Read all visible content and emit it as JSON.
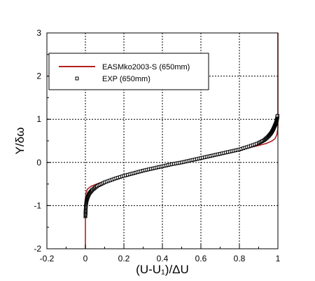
{
  "chart_data": {
    "type": "line",
    "title": "",
    "xlabel": "(U-U₁)/ΔU",
    "ylabel": "Y/δω",
    "xlim": [
      -0.2,
      1.0
    ],
    "ylim": [
      -2,
      3
    ],
    "x_ticks": [
      "-0.2",
      "0",
      "0.2",
      "0.4",
      "0.6",
      "0.8",
      "1"
    ],
    "y_ticks": [
      "-2",
      "-1",
      "0",
      "1",
      "2",
      "3"
    ],
    "grid": true,
    "legend_position": "top-left",
    "series": [
      {
        "name": "EASMko2003-S (650mm)",
        "type": "line",
        "color": "#b22222",
        "x": [
          0.0,
          0.0,
          0.002,
          0.01,
          0.03,
          0.07,
          0.12,
          0.2,
          0.3,
          0.4,
          0.5,
          0.6,
          0.7,
          0.8,
          0.88,
          0.94,
          0.97,
          0.985,
          0.995,
          1.0,
          1.0
        ],
        "y": [
          -2.0,
          -0.85,
          -0.72,
          -0.62,
          -0.55,
          -0.48,
          -0.42,
          -0.33,
          -0.21,
          -0.1,
          0.0,
          0.1,
          0.2,
          0.3,
          0.37,
          0.44,
          0.5,
          0.55,
          0.65,
          0.8,
          3.0
        ]
      },
      {
        "name": "EXP (650mm)",
        "type": "scatter",
        "marker": "square",
        "color": "#000000",
        "x": [
          0.0,
          0.001,
          0.002,
          0.004,
          0.007,
          0.012,
          0.02,
          0.035,
          0.06,
          0.1,
          0.15,
          0.2,
          0.25,
          0.3,
          0.35,
          0.4,
          0.45,
          0.5,
          0.55,
          0.6,
          0.65,
          0.7,
          0.75,
          0.8,
          0.85,
          0.9,
          0.93,
          0.95,
          0.965,
          0.975,
          0.983,
          0.989,
          0.993,
          0.996,
          0.998
        ],
        "y": [
          -1.25,
          -1.15,
          -1.05,
          -0.95,
          -0.87,
          -0.8,
          -0.72,
          -0.64,
          -0.55,
          -0.46,
          -0.38,
          -0.31,
          -0.25,
          -0.19,
          -0.14,
          -0.09,
          -0.04,
          0.0,
          0.05,
          0.1,
          0.15,
          0.2,
          0.25,
          0.3,
          0.37,
          0.45,
          0.52,
          0.6,
          0.68,
          0.76,
          0.84,
          0.9,
          0.96,
          1.02,
          1.08
        ]
      }
    ]
  }
}
